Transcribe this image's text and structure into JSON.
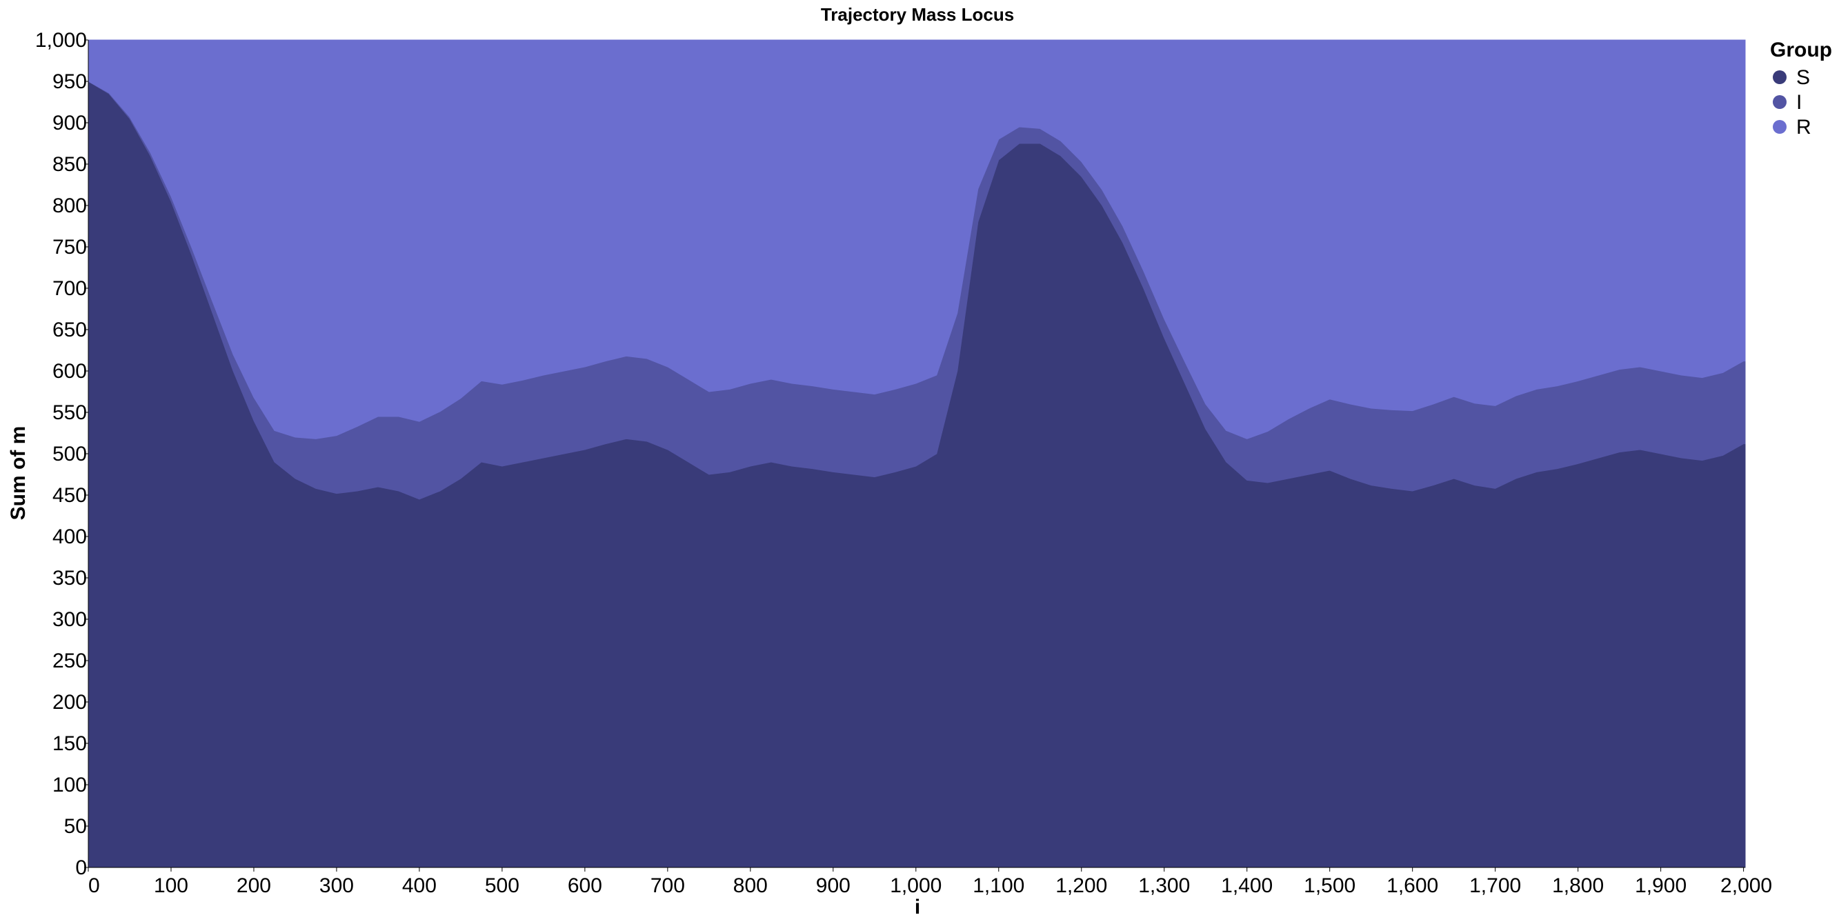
{
  "chart_data": {
    "type": "area",
    "stacked": true,
    "title": "Trajectory Mass Locus",
    "xlabel": "i",
    "ylabel": "Sum of m",
    "xlim": [
      0,
      2000
    ],
    "ylim": [
      0,
      1000
    ],
    "x_ticks": [
      "0",
      "100",
      "200",
      "300",
      "400",
      "500",
      "600",
      "700",
      "800",
      "900",
      "1,000",
      "1,100",
      "1,200",
      "1,300",
      "1,400",
      "1,500",
      "1,600",
      "1,700",
      "1,800",
      "1,900",
      "2,000"
    ],
    "y_ticks": [
      "0",
      "50",
      "100",
      "150",
      "200",
      "250",
      "300",
      "350",
      "400",
      "450",
      "500",
      "550",
      "600",
      "650",
      "700",
      "750",
      "800",
      "850",
      "900",
      "950",
      "1,000"
    ],
    "legend": {
      "title": "Group",
      "position": "top-right"
    },
    "grid": false,
    "x": [
      0,
      25,
      50,
      75,
      100,
      125,
      150,
      175,
      200,
      225,
      250,
      275,
      300,
      325,
      350,
      375,
      400,
      425,
      450,
      475,
      500,
      525,
      550,
      575,
      600,
      625,
      650,
      675,
      700,
      725,
      750,
      775,
      800,
      825,
      850,
      875,
      900,
      925,
      950,
      975,
      1000,
      1025,
      1050,
      1075,
      1100,
      1125,
      1150,
      1175,
      1200,
      1225,
      1250,
      1275,
      1300,
      1325,
      1350,
      1375,
      1400,
      1425,
      1450,
      1475,
      1500,
      1525,
      1550,
      1575,
      1600,
      1625,
      1650,
      1675,
      1700,
      1725,
      1750,
      1775,
      1800,
      1825,
      1850,
      1875,
      1900,
      1925,
      1950,
      1975,
      2000
    ],
    "series": [
      {
        "name": "S",
        "color": "#393b79",
        "values": [
          950,
          935,
          905,
          860,
          805,
          740,
          670,
          600,
          540,
          490,
          470,
          458,
          452,
          455,
          460,
          455,
          445,
          455,
          470,
          490,
          485,
          490,
          495,
          500,
          505,
          512,
          518,
          515,
          505,
          490,
          475,
          478,
          485,
          490,
          485,
          482,
          478,
          475,
          472,
          478,
          485,
          500,
          600,
          780,
          855,
          875,
          875,
          860,
          835,
          800,
          755,
          700,
          640,
          585,
          530,
          490,
          468,
          465,
          470,
          475,
          480,
          470,
          462,
          458,
          455,
          462,
          470,
          462,
          458,
          470,
          478,
          482,
          488,
          495,
          502,
          505,
          500,
          495,
          492,
          498,
          512
        ]
      },
      {
        "name": "I",
        "color": "#5254a3",
        "values": [
          0,
          1,
          2,
          4,
          6,
          9,
          14,
          20,
          28,
          38,
          50,
          60,
          70,
          78,
          85,
          90,
          94,
          96,
          97,
          98,
          99,
          99,
          100,
          100,
          100,
          100,
          100,
          100,
          100,
          100,
          100,
          100,
          100,
          100,
          100,
          100,
          100,
          100,
          100,
          100,
          100,
          95,
          70,
          40,
          25,
          20,
          18,
          18,
          18,
          19,
          20,
          21,
          23,
          26,
          30,
          38,
          50,
          62,
          72,
          80,
          86,
          90,
          93,
          95,
          97,
          98,
          99,
          99,
          100,
          100,
          100,
          100,
          100,
          100,
          100,
          100,
          100,
          100,
          100,
          100,
          100
        ]
      },
      {
        "name": "R",
        "color": "#6b6ecf",
        "values": [
          50,
          64,
          93,
          136,
          189,
          251,
          316,
          380,
          432,
          472,
          480,
          482,
          478,
          467,
          455,
          455,
          461,
          449,
          433,
          412,
          416,
          411,
          405,
          400,
          395,
          388,
          382,
          385,
          395,
          410,
          425,
          422,
          415,
          410,
          415,
          418,
          422,
          425,
          428,
          422,
          415,
          405,
          330,
          180,
          120,
          105,
          107,
          122,
          147,
          181,
          225,
          279,
          337,
          389,
          440,
          472,
          482,
          473,
          458,
          445,
          434,
          440,
          445,
          447,
          448,
          440,
          431,
          439,
          442,
          430,
          422,
          418,
          412,
          405,
          398,
          395,
          400,
          405,
          408,
          402,
          388
        ]
      }
    ]
  }
}
